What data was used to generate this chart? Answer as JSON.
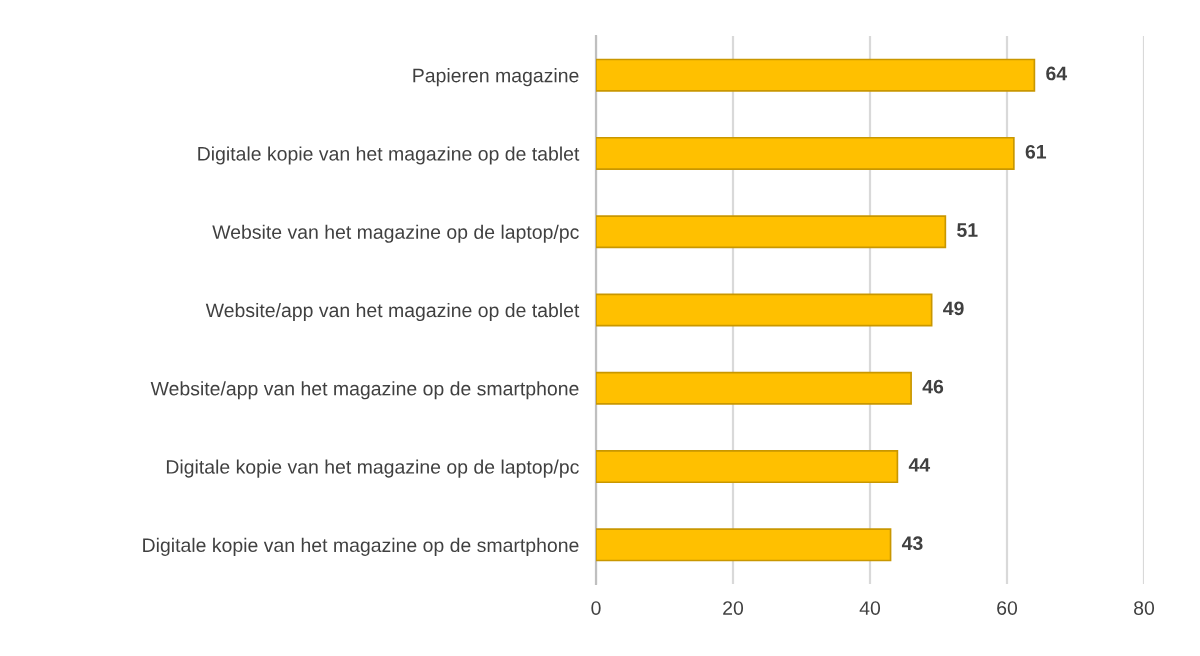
{
  "chart_data": {
    "type": "bar",
    "orientation": "horizontal",
    "categories": [
      "Papieren magazine",
      "Digitale kopie van het magazine op de tablet",
      "Website van het magazine op de laptop/pc",
      "Website/app van het magazine op de tablet",
      "Website/app van het magazine op de smartphone",
      "Digitale kopie van het magazine op de laptop/pc",
      "Digitale kopie van het magazine op de smartphone"
    ],
    "values": [
      64,
      61,
      51,
      49,
      46,
      44,
      43
    ],
    "color": "#ffc000",
    "xlim": [
      0,
      80
    ],
    "xticks": [
      0,
      20,
      40,
      60,
      80
    ],
    "grid": "x",
    "data_labels": true
  }
}
